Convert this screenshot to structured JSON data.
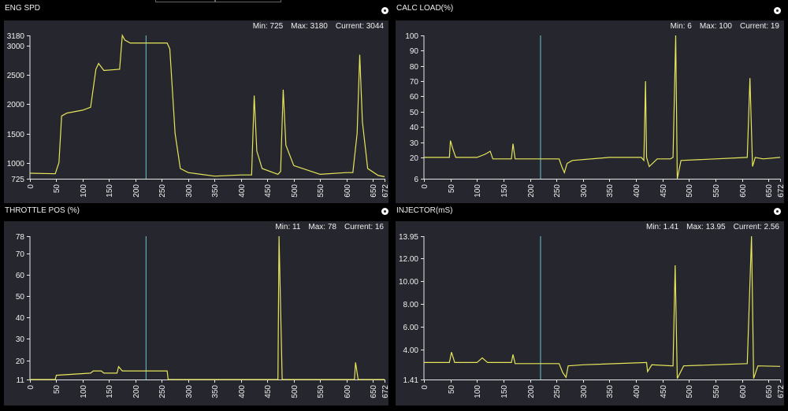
{
  "colors": {
    "trace": "#e6e65a",
    "cursor": "#6cc6d0",
    "panel_bg": "#26262e",
    "axis": "#e8e8e8"
  },
  "cursor_x": 220,
  "panels": [
    {
      "title": "ENG SPD",
      "stats": {
        "min": "Min: 725",
        "max": "Max: 3180",
        "current": "Current: 3044"
      },
      "chart_data": {
        "type": "line",
        "xlim": [
          0,
          672
        ],
        "ylim": [
          725,
          3180
        ],
        "x_ticks": [
          "0",
          "50",
          "100",
          "150",
          "200",
          "250",
          "300",
          "350",
          "400",
          "450",
          "500",
          "550",
          "600",
          "650",
          "672"
        ],
        "y_ticks": [
          "725",
          "1000",
          "1500",
          "2000",
          "2500",
          "3000",
          "3180"
        ],
        "points": [
          [
            0,
            820
          ],
          [
            48,
            810
          ],
          [
            55,
            1000
          ],
          [
            60,
            1800
          ],
          [
            70,
            1850
          ],
          [
            100,
            1900
          ],
          [
            115,
            1950
          ],
          [
            125,
            2600
          ],
          [
            130,
            2700
          ],
          [
            140,
            2580
          ],
          [
            170,
            2600
          ],
          [
            175,
            3180
          ],
          [
            180,
            3100
          ],
          [
            190,
            3050
          ],
          [
            260,
            3050
          ],
          [
            265,
            2950
          ],
          [
            275,
            1500
          ],
          [
            285,
            900
          ],
          [
            300,
            830
          ],
          [
            350,
            770
          ],
          [
            400,
            790
          ],
          [
            420,
            790
          ],
          [
            425,
            2150
          ],
          [
            430,
            1200
          ],
          [
            440,
            900
          ],
          [
            470,
            800
          ],
          [
            475,
            850
          ],
          [
            480,
            2250
          ],
          [
            485,
            1300
          ],
          [
            500,
            950
          ],
          [
            550,
            800
          ],
          [
            600,
            830
          ],
          [
            612,
            830
          ],
          [
            620,
            1500
          ],
          [
            625,
            2850
          ],
          [
            630,
            1700
          ],
          [
            640,
            900
          ],
          [
            660,
            780
          ],
          [
            672,
            760
          ]
        ]
      }
    },
    {
      "title": "CALC LOAD(%)",
      "stats": {
        "min": "Min: 6",
        "max": "Max: 100",
        "current": "Current: 19"
      },
      "chart_data": {
        "type": "line",
        "xlim": [
          0,
          672
        ],
        "ylim": [
          6,
          100
        ],
        "x_ticks": [
          "0",
          "50",
          "100",
          "150",
          "200",
          "250",
          "300",
          "350",
          "400",
          "450",
          "500",
          "550",
          "600",
          "650",
          "672"
        ],
        "y_ticks": [
          "6",
          "20",
          "30",
          "40",
          "50",
          "60",
          "70",
          "80",
          "90",
          "100"
        ],
        "points": [
          [
            0,
            20
          ],
          [
            48,
            20
          ],
          [
            50,
            31
          ],
          [
            55,
            25
          ],
          [
            60,
            20
          ],
          [
            100,
            20
          ],
          [
            115,
            22
          ],
          [
            125,
            24
          ],
          [
            130,
            19
          ],
          [
            165,
            19
          ],
          [
            168,
            29
          ],
          [
            172,
            19
          ],
          [
            255,
            19
          ],
          [
            260,
            14
          ],
          [
            265,
            10
          ],
          [
            270,
            16
          ],
          [
            280,
            18
          ],
          [
            350,
            20
          ],
          [
            410,
            20
          ],
          [
            415,
            18
          ],
          [
            418,
            70
          ],
          [
            420,
            20
          ],
          [
            425,
            14
          ],
          [
            440,
            19
          ],
          [
            465,
            19
          ],
          [
            470,
            20
          ],
          [
            475,
            100
          ],
          [
            478,
            6
          ],
          [
            485,
            18
          ],
          [
            550,
            19
          ],
          [
            610,
            20
          ],
          [
            615,
            72
          ],
          [
            620,
            14
          ],
          [
            625,
            20
          ],
          [
            640,
            19
          ],
          [
            672,
            20
          ]
        ]
      }
    },
    {
      "title": "THROTTLE POS (%)",
      "stats": {
        "min": "Min: 11",
        "max": "Max: 78",
        "current": "Current: 16"
      },
      "chart_data": {
        "type": "line",
        "xlim": [
          0,
          672
        ],
        "ylim": [
          11,
          78
        ],
        "x_ticks": [
          "0",
          "50",
          "100",
          "150",
          "200",
          "250",
          "300",
          "350",
          "400",
          "450",
          "500",
          "550",
          "600",
          "650",
          "672"
        ],
        "y_ticks": [
          "11",
          "20",
          "30",
          "40",
          "50",
          "60",
          "70",
          "78"
        ],
        "points": [
          [
            0,
            11
          ],
          [
            48,
            11
          ],
          [
            50,
            13
          ],
          [
            115,
            14
          ],
          [
            120,
            15
          ],
          [
            135,
            15
          ],
          [
            140,
            14
          ],
          [
            165,
            14
          ],
          [
            168,
            17
          ],
          [
            175,
            15
          ],
          [
            260,
            15
          ],
          [
            262,
            11
          ],
          [
            470,
            11
          ],
          [
            472,
            78
          ],
          [
            478,
            11
          ],
          [
            615,
            11
          ],
          [
            617,
            19
          ],
          [
            622,
            11
          ],
          [
            672,
            11
          ]
        ]
      }
    },
    {
      "title": "INJECTOR(mS)",
      "stats": {
        "min": "Min: 1.41",
        "max": "Max: 13.95",
        "current": "Current: 2.56"
      },
      "chart_data": {
        "type": "line",
        "xlim": [
          0,
          672
        ],
        "ylim": [
          1.41,
          13.95
        ],
        "x_ticks": [
          "0",
          "50",
          "100",
          "150",
          "200",
          "250",
          "300",
          "350",
          "400",
          "450",
          "500",
          "550",
          "600",
          "650",
          "672"
        ],
        "y_ticks": [
          "1.41",
          "4.00",
          "6.00",
          "8.00",
          "10.00",
          "12.00",
          "13.95"
        ],
        "points": [
          [
            0,
            2.9
          ],
          [
            48,
            2.9
          ],
          [
            52,
            3.8
          ],
          [
            58,
            2.9
          ],
          [
            100,
            2.9
          ],
          [
            110,
            3.3
          ],
          [
            120,
            2.9
          ],
          [
            165,
            2.9
          ],
          [
            168,
            3.6
          ],
          [
            172,
            2.8
          ],
          [
            255,
            2.8
          ],
          [
            262,
            2.0
          ],
          [
            268,
            1.6
          ],
          [
            272,
            2.6
          ],
          [
            300,
            2.7
          ],
          [
            420,
            2.9
          ],
          [
            422,
            2.1
          ],
          [
            430,
            2.7
          ],
          [
            470,
            2.6
          ],
          [
            474,
            11.4
          ],
          [
            478,
            1.5
          ],
          [
            490,
            2.6
          ],
          [
            610,
            2.8
          ],
          [
            618,
            13.95
          ],
          [
            622,
            1.5
          ],
          [
            630,
            2.6
          ],
          [
            672,
            2.56
          ]
        ]
      }
    }
  ]
}
